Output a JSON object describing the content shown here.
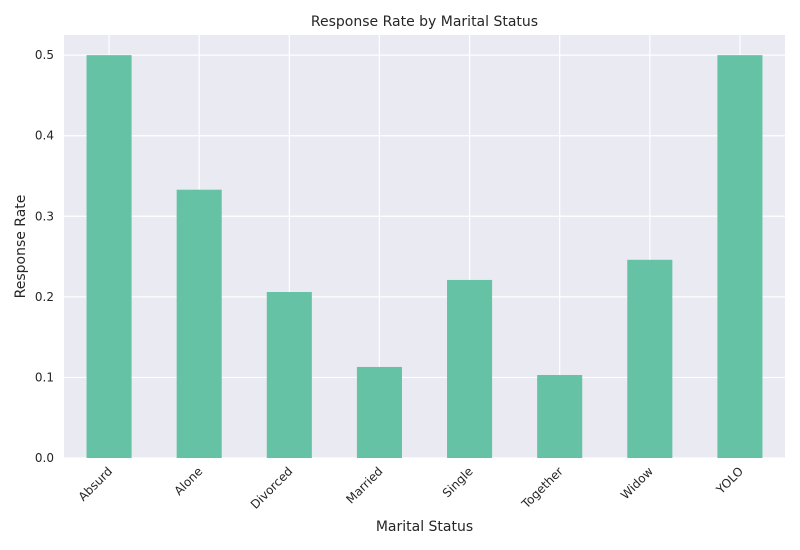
{
  "chart_data": {
    "type": "bar",
    "title": "Response Rate by Marital Status",
    "xlabel": "Marital Status",
    "ylabel": "Response Rate",
    "categories": [
      "Absurd",
      "Alone",
      "Divorced",
      "Married",
      "Single",
      "Together",
      "Widow",
      "YOLO"
    ],
    "values": [
      0.5,
      0.333,
      0.206,
      0.113,
      0.221,
      0.103,
      0.246,
      0.5
    ],
    "ylim": [
      0,
      0.525
    ],
    "yticks": [
      "0.0",
      "0.1",
      "0.2",
      "0.3",
      "0.4",
      "0.5"
    ],
    "grid": true,
    "bar_color": "#66c2a5",
    "plot_background": "#eaeaf2",
    "grid_color": "#ffffff"
  }
}
